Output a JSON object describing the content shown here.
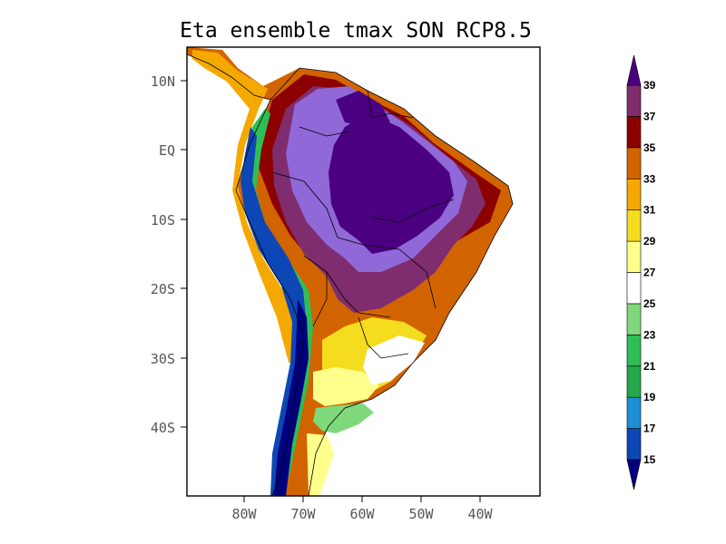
{
  "map": {
    "title": "Eta ensemble tmax SON RCP8.5",
    "lat_labels": [
      "10N",
      "EQ",
      "10S",
      "20S",
      "30S",
      "40S"
    ],
    "lon_labels": [
      "80W",
      "70W",
      "60W",
      "50W",
      "40W"
    ],
    "lon_range": [
      -89,
      -29
    ],
    "lat_range": [
      -50,
      15
    ]
  },
  "colorbar": {
    "levels": [
      "15",
      "17",
      "19",
      "21",
      "23",
      "25",
      "27",
      "29",
      "31",
      "33",
      "35",
      "37",
      "39"
    ],
    "colors": [
      "#00007f",
      "#0d47b5",
      "#1e8fd2",
      "#23a84a",
      "#2fbe56",
      "#7fd87a",
      "#ffffff",
      "#ffff8c",
      "#f5dc1e",
      "#f5a800",
      "#d26400",
      "#8c0000",
      "#7f2d6e",
      "#9068d8",
      "#4b0082"
    ]
  },
  "colors": {
    "ocean": "#ffffff",
    "border": "#000000"
  }
}
